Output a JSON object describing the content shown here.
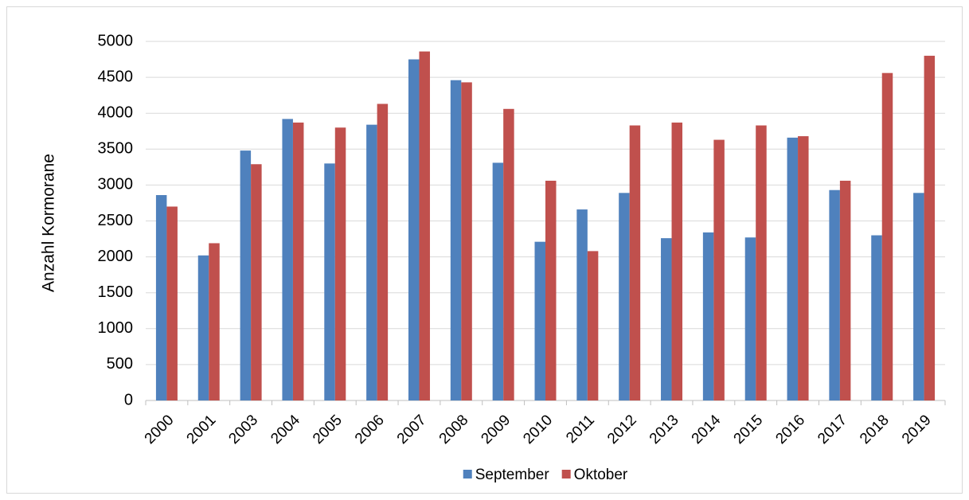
{
  "chart_data": {
    "type": "bar",
    "y_label": "Anzahl Kormorane",
    "categories": [
      "2000",
      "2001",
      "2003",
      "2004",
      "2005",
      "2006",
      "2007",
      "2008",
      "2009",
      "2010",
      "2011",
      "2012",
      "2013",
      "2014",
      "2015",
      "2016",
      "2017",
      "2018",
      "2019"
    ],
    "series": [
      {
        "name": "September",
        "color": "#4f81bd",
        "values": [
          2860,
          2020,
          3480,
          3920,
          3300,
          3840,
          4750,
          4460,
          3310,
          2210,
          2660,
          2890,
          2260,
          2340,
          2270,
          3660,
          2930,
          2300,
          2890
        ]
      },
      {
        "name": "Oktober",
        "color": "#c0504d",
        "values": [
          2700,
          2190,
          3290,
          3870,
          3800,
          4130,
          4860,
          4430,
          4060,
          3060,
          2080,
          3830,
          3870,
          3630,
          3830,
          3680,
          3060,
          4560,
          4800
        ]
      }
    ],
    "ylim": [
      0,
      5000
    ],
    "yticks": [
      0,
      500,
      1000,
      1500,
      2000,
      2500,
      3000,
      3500,
      4000,
      4500,
      5000
    ],
    "grid": true,
    "legend": "bottom"
  }
}
